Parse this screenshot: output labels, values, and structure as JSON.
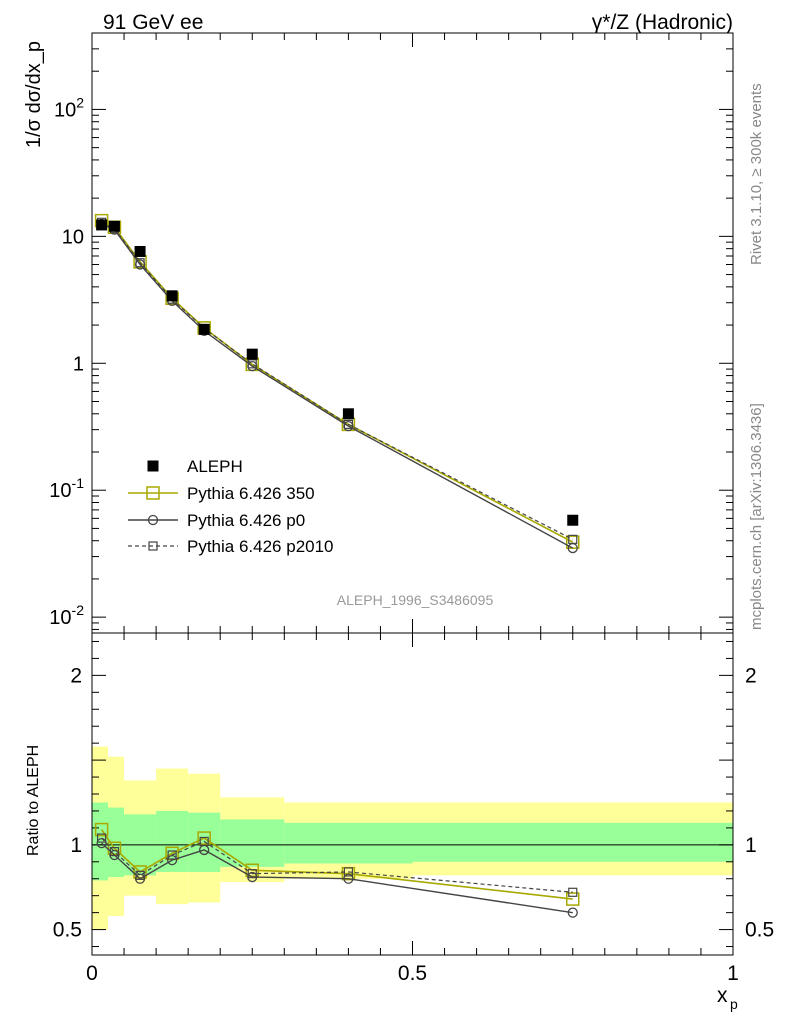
{
  "header": {
    "left_title": "91 GeV ee",
    "right_title": "γ*/Z (Hadronic)"
  },
  "side": {
    "rivet": "Rivet 3.1.10, ≥ 300k events",
    "mcplots": "mcplots.cern.ch [arXiv:1306.3436]"
  },
  "analysis_id": "ALEPH_1996_S3486095",
  "colors": {
    "data": "#000000",
    "p350": "#a8a800",
    "p0": "#444444",
    "p2010": "#444444",
    "band_inner": "#99ff99",
    "band_outer": "#ffff99"
  },
  "chart_data": [
    {
      "type": "line",
      "scale": "log",
      "title": "91 GeV ee",
      "ylabel": "1/σ dσ/dx_p",
      "xlim": [
        0,
        1
      ],
      "ylim": [
        0.0075,
        400
      ],
      "y_ticks": [
        {
          "value": 0.01,
          "label": "10^-2"
        },
        {
          "value": 0.1,
          "label": "10^-1"
        },
        {
          "value": 1,
          "label": "1"
        },
        {
          "value": 10,
          "label": "10"
        },
        {
          "value": 100,
          "label": "10^2"
        }
      ],
      "x": [
        0.015,
        0.035,
        0.075,
        0.125,
        0.175,
        0.25,
        0.4,
        0.75
      ],
      "series": [
        {
          "name": "ALEPH",
          "style": "data",
          "values": [
            12.3,
            12.0,
            7.6,
            3.4,
            1.85,
            1.18,
            0.4,
            0.058
          ]
        },
        {
          "name": "Pythia 6.426 350",
          "style": "p350",
          "values": [
            13.3,
            11.8,
            6.3,
            3.25,
            1.9,
            0.98,
            0.33,
            0.039
          ]
        },
        {
          "name": "Pythia 6.426 p0",
          "style": "p0",
          "values": [
            12.5,
            11.3,
            6.0,
            3.1,
            1.8,
            0.95,
            0.32,
            0.035
          ]
        },
        {
          "name": "Pythia 6.426 p2010",
          "style": "p2010",
          "values": [
            12.9,
            11.5,
            6.2,
            3.2,
            1.88,
            0.99,
            0.33,
            0.041
          ]
        }
      ]
    },
    {
      "type": "line",
      "ylabel": "Ratio to ALEPH",
      "xlabel": "x_p",
      "xlim": [
        0,
        1
      ],
      "ylim": [
        0.35,
        2.25
      ],
      "y_ticks": [
        {
          "value": 0.5,
          "label": "0.5"
        },
        {
          "value": 1,
          "label": "1"
        },
        {
          "value": 2,
          "label": "2"
        }
      ],
      "x_ticks": [
        {
          "value": 0,
          "label": "0"
        },
        {
          "value": 0.5,
          "label": "0.5"
        },
        {
          "value": 1,
          "label": "1"
        }
      ],
      "bins": [
        {
          "lo": 0.0,
          "hi": 0.025,
          "inner": [
            0.79,
            1.25
          ],
          "outer": [
            0.5,
            1.58
          ]
        },
        {
          "lo": 0.025,
          "hi": 0.05,
          "inner": [
            0.81,
            1.22
          ],
          "outer": [
            0.58,
            1.52
          ]
        },
        {
          "lo": 0.05,
          "hi": 0.1,
          "inner": [
            0.82,
            1.18
          ],
          "outer": [
            0.7,
            1.38
          ]
        },
        {
          "lo": 0.1,
          "hi": 0.15,
          "inner": [
            0.84,
            1.2
          ],
          "outer": [
            0.65,
            1.45
          ]
        },
        {
          "lo": 0.15,
          "hi": 0.2,
          "inner": [
            0.84,
            1.19
          ],
          "outer": [
            0.66,
            1.42
          ]
        },
        {
          "lo": 0.2,
          "hi": 0.3,
          "inner": [
            0.87,
            1.15
          ],
          "outer": [
            0.78,
            1.28
          ]
        },
        {
          "lo": 0.3,
          "hi": 0.5,
          "inner": [
            0.89,
            1.13
          ],
          "outer": [
            0.8,
            1.25
          ]
        },
        {
          "lo": 0.5,
          "hi": 1.0,
          "inner": [
            0.9,
            1.13
          ],
          "outer": [
            0.82,
            1.25
          ]
        }
      ],
      "series": [
        {
          "name": "Pythia 6.426 350",
          "style": "p350",
          "values": [
            1.09,
            0.98,
            0.84,
            0.95,
            1.04,
            0.85,
            0.83,
            0.68
          ]
        },
        {
          "name": "Pythia 6.426 p0",
          "style": "p0",
          "values": [
            1.01,
            0.94,
            0.8,
            0.91,
            0.97,
            0.81,
            0.8,
            0.6
          ]
        },
        {
          "name": "Pythia 6.426 p2010",
          "style": "p2010",
          "values": [
            1.04,
            0.96,
            0.82,
            0.94,
            1.02,
            0.83,
            0.84,
            0.72
          ]
        }
      ]
    }
  ]
}
